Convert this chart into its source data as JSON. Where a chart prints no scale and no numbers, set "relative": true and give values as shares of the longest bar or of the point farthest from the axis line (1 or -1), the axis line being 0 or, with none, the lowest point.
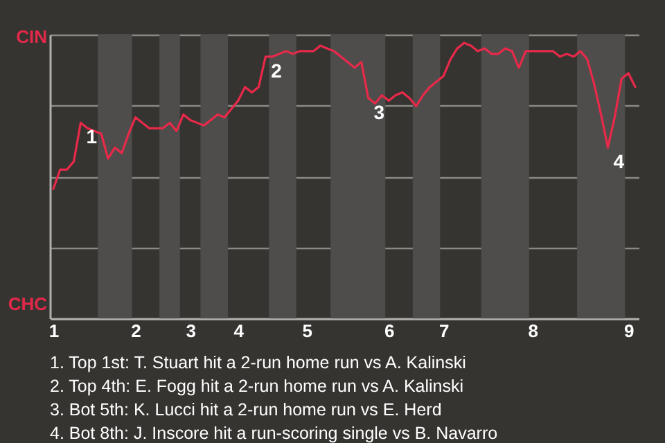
{
  "chart_data": {
    "type": "line",
    "relative": true,
    "categories": [
      "1",
      null,
      null,
      null,
      null,
      null,
      null,
      null,
      null,
      null,
      null,
      null,
      "2",
      null,
      null,
      null,
      null,
      null,
      null,
      null,
      "3",
      null,
      null,
      null,
      null,
      null,
      null,
      "4",
      null,
      null,
      null,
      null,
      null,
      null,
      null,
      null,
      null,
      "5",
      null,
      null,
      null,
      null,
      null,
      null,
      null,
      null,
      null,
      null,
      null,
      "6",
      null,
      null,
      null,
      null,
      null,
      null,
      null,
      "7",
      null,
      null,
      null,
      null,
      null,
      null,
      null,
      null,
      null,
      null,
      null,
      null,
      "8",
      null,
      null,
      null,
      null,
      null,
      null,
      null,
      null,
      null,
      null,
      null,
      null,
      null,
      "9",
      null
    ],
    "series": [
      {
        "color": "#e8294a",
        "values": [
          0.47,
          0.54,
          0.54,
          0.57,
          0.71,
          0.69,
          0.68,
          0.67,
          0.58,
          0.62,
          0.6,
          0.67,
          0.73,
          0.71,
          0.69,
          0.69,
          0.69,
          0.71,
          0.68,
          0.74,
          0.72,
          0.71,
          0.7,
          0.72,
          0.74,
          0.73,
          0.76,
          0.79,
          0.84,
          0.82,
          0.84,
          0.95,
          0.95,
          0.96,
          0.97,
          0.96,
          0.97,
          0.97,
          0.97,
          0.99,
          0.98,
          0.97,
          0.95,
          0.93,
          0.91,
          0.93,
          0.8,
          0.78,
          0.81,
          0.79,
          0.81,
          0.82,
          0.8,
          0.77,
          0.81,
          0.84,
          0.86,
          0.88,
          0.94,
          0.98,
          1,
          0.99,
          0.97,
          0.98,
          0.96,
          0.96,
          0.98,
          0.97,
          0.91,
          0.97,
          0.97,
          0.97,
          0.97,
          0.97,
          0.95,
          0.96,
          0.95,
          0.97,
          0.94,
          0.85,
          0.74,
          0.62,
          0.73,
          0.87,
          0.89,
          0.84
        ]
      }
    ],
    "grid": "y",
    "annotations": [
      "CIN",
      "CHC",
      "1",
      "2",
      "3",
      "4",
      "1. Top 1st: T. Stuart hit a 2-run home run vs A. Kalinski",
      "2. Top 4th: E. Fogg hit a 2-run home run vs A. Kalinski",
      "3. Bot 5th: K. Lucci hit a 2-run home run vs E. Herd",
      "4. Bot 8th: J. Inscore hit a run-scoring single vs B. Navarro"
    ]
  }
}
